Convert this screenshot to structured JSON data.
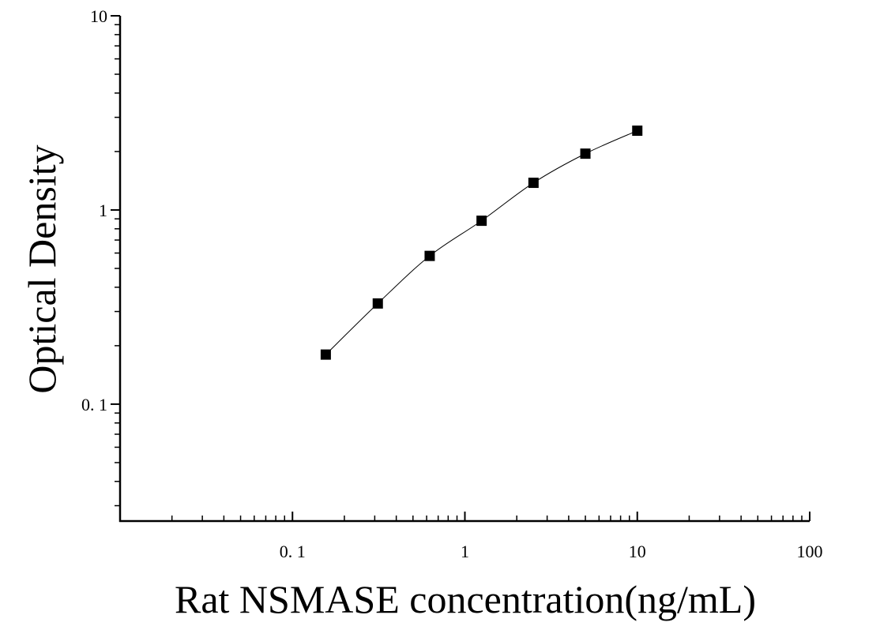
{
  "chart_data": {
    "type": "scatter",
    "xlabel": "Rat NSMASE concentration(ng/mL)",
    "ylabel": "Optical Density",
    "xscale": "log",
    "yscale": "log",
    "xlim": [
      0.01,
      100
    ],
    "ylim": [
      0.025,
      10
    ],
    "x_tick_labels": [
      {
        "value": 0.1,
        "label": "0. 1"
      },
      {
        "value": 1,
        "label": "1"
      },
      {
        "value": 10,
        "label": "10"
      },
      {
        "value": 100,
        "label": "100"
      }
    ],
    "y_tick_labels": [
      {
        "value": 0.1,
        "label": "0. 1"
      },
      {
        "value": 1,
        "label": "1"
      },
      {
        "value": 10,
        "label": "10"
      }
    ],
    "grid": false,
    "fit_curve": true,
    "marker": "square",
    "marker_color": "#000000",
    "series": [
      {
        "x": [
          0.156,
          0.3125,
          0.625,
          1.25,
          2.5,
          5,
          10
        ],
        "y": [
          0.18,
          0.33,
          0.58,
          0.88,
          1.38,
          1.95,
          2.56
        ]
      }
    ]
  }
}
